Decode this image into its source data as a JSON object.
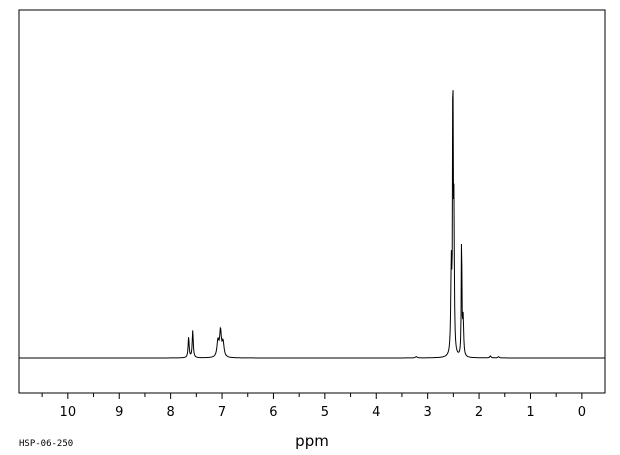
{
  "chart_data": {
    "type": "line",
    "title": "",
    "xlabel": "ppm",
    "ylabel": "",
    "xlim": [
      10.95,
      -0.45
    ],
    "ylim": [
      -0.12,
      1.07
    ],
    "x_reversed": true,
    "grid": false,
    "major_ticks": [
      10,
      9,
      8,
      7,
      6,
      5,
      4,
      3,
      2,
      1,
      0
    ],
    "tick_labels": [
      "10",
      "9",
      "8",
      "7",
      "6",
      "5",
      "4",
      "3",
      "2",
      "1",
      "0"
    ],
    "minor_ticks": [
      10.5,
      9.5,
      8.5,
      7.5,
      6.5,
      5.5,
      4.5,
      3.5,
      2.5,
      1.5,
      0.5
    ],
    "series": [
      {
        "peaks": [
          {
            "x": 7.65,
            "y": 0.065,
            "w": 0.012
          },
          {
            "x": 7.57,
            "y": 0.085,
            "w": 0.012
          },
          {
            "x": 7.08,
            "y": 0.05,
            "w": 0.022
          },
          {
            "x": 7.03,
            "y": 0.08,
            "w": 0.02
          },
          {
            "x": 6.98,
            "y": 0.045,
            "w": 0.022
          },
          {
            "x": 3.22,
            "y": 0.004,
            "w": 0.02
          },
          {
            "x": 2.54,
            "y": 0.28,
            "w": 0.012
          },
          {
            "x": 2.51,
            "y": 1.0,
            "w": 0.006
          },
          {
            "x": 2.49,
            "y": 0.45,
            "w": 0.01
          },
          {
            "x": 2.34,
            "y": 0.4,
            "w": 0.007
          },
          {
            "x": 2.31,
            "y": 0.12,
            "w": 0.012
          },
          {
            "x": 1.78,
            "y": 0.006,
            "w": 0.015
          },
          {
            "x": 1.62,
            "y": 0.004,
            "w": 0.015
          }
        ]
      }
    ]
  },
  "footer": {
    "code": "HSP-06-250"
  }
}
